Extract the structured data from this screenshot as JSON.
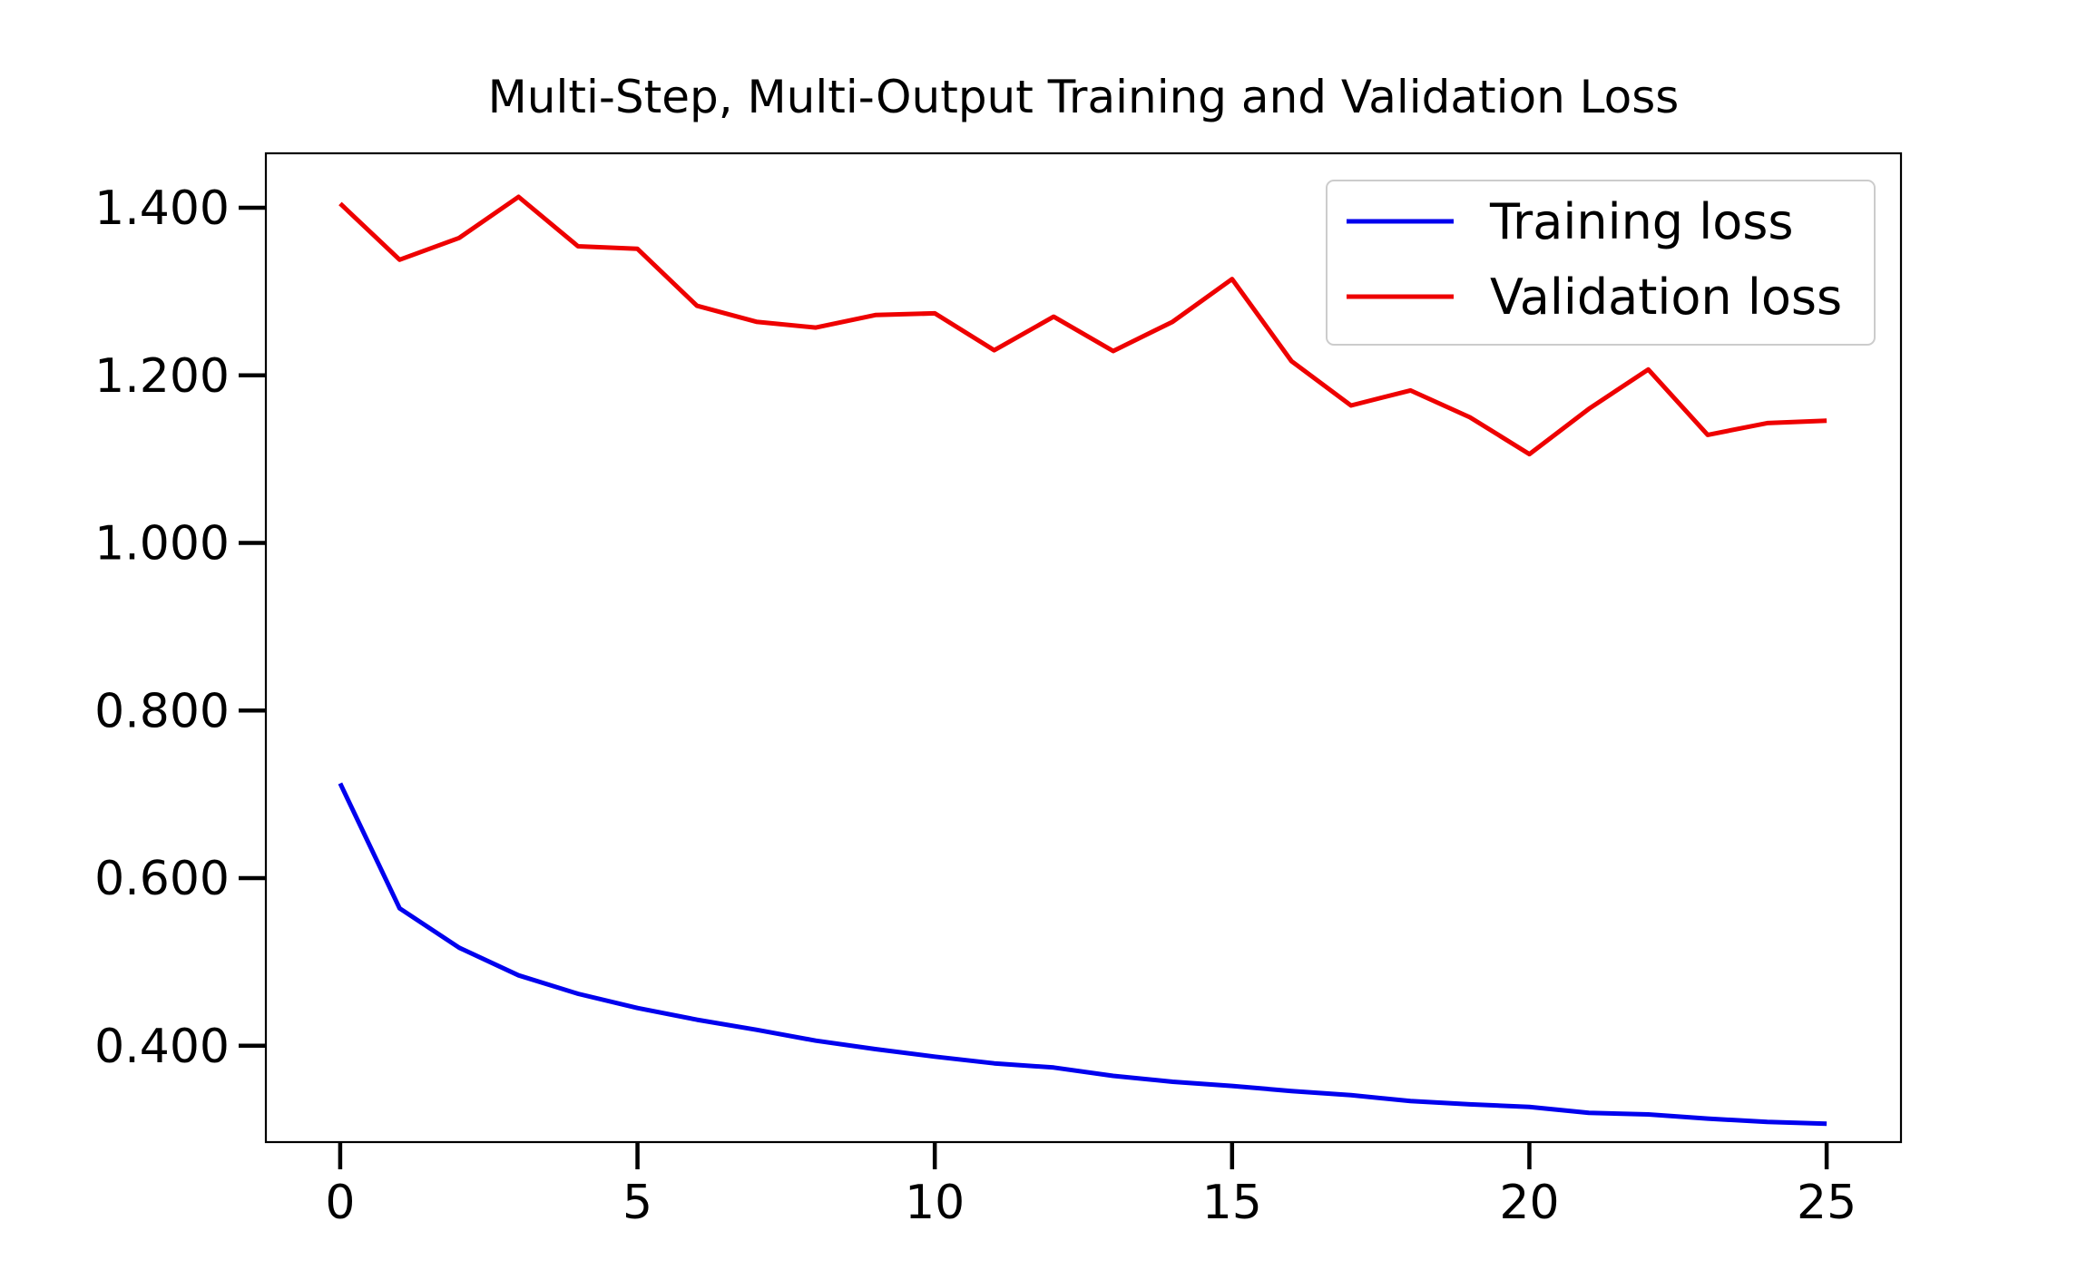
{
  "chart_data": {
    "type": "line",
    "title": "Multi-Step, Multi-Output Training and Validation Loss",
    "xlabel": "",
    "ylabel": "",
    "xlim": [
      -1.25,
      26.25
    ],
    "ylim": [
      0.285,
      1.465
    ],
    "x_ticks": [
      0,
      5,
      10,
      15,
      20,
      25
    ],
    "x_tick_labels": [
      "0",
      "5",
      "10",
      "15",
      "20",
      "25"
    ],
    "y_ticks": [
      0.4,
      0.6,
      0.8,
      1.0,
      1.2,
      1.4
    ],
    "y_tick_labels": [
      "0.400",
      "0.600",
      "0.800",
      "1.000",
      "1.200",
      "1.400"
    ],
    "grid": false,
    "legend_position": "top-right",
    "x": [
      0,
      1,
      2,
      3,
      4,
      5,
      6,
      7,
      8,
      9,
      10,
      11,
      12,
      13,
      14,
      15,
      16,
      17,
      18,
      19,
      20,
      21,
      22,
      23,
      24,
      25
    ],
    "series": [
      {
        "name": "Training loss",
        "color": "#0000ee",
        "values": [
          0.713,
          0.564,
          0.517,
          0.484,
          0.462,
          0.445,
          0.431,
          0.419,
          0.406,
          0.396,
          0.387,
          0.379,
          0.374,
          0.364,
          0.357,
          0.352,
          0.346,
          0.341,
          0.334,
          0.33,
          0.327,
          0.32,
          0.318,
          0.313,
          0.309,
          0.307
        ]
      },
      {
        "name": "Validation loss",
        "color": "#ee0000",
        "values": [
          1.405,
          1.338,
          1.364,
          1.413,
          1.354,
          1.351,
          1.283,
          1.264,
          1.257,
          1.272,
          1.274,
          1.23,
          1.27,
          1.229,
          1.264,
          1.315,
          1.217,
          1.164,
          1.182,
          1.15,
          1.106,
          1.16,
          1.207,
          1.129,
          1.143,
          1.146
        ]
      }
    ]
  }
}
